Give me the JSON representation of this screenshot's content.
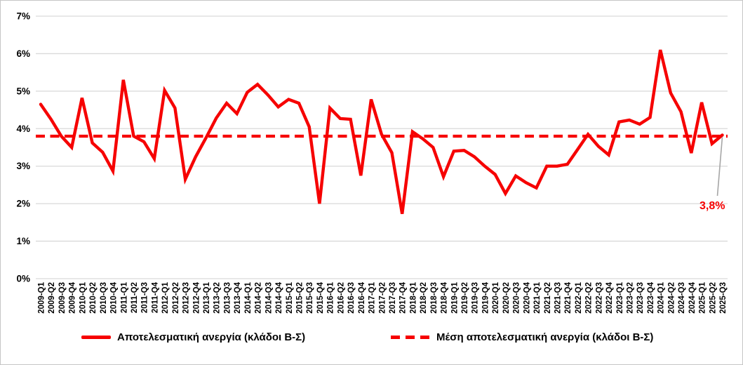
{
  "chart_data": {
    "type": "line",
    "title": "",
    "xlabel": "",
    "ylabel": "",
    "categories": [
      "2009-Q1",
      "2009-Q2",
      "2009-Q3",
      "2009-Q4",
      "2010-Q1",
      "2010-Q2",
      "2010-Q3",
      "2010-Q4",
      "2011-Q1",
      "2011-Q2",
      "2011-Q3",
      "2011-Q4",
      "2012-Q1",
      "2012-Q2",
      "2012-Q3",
      "2012-Q4",
      "2013-Q1",
      "2013-Q2",
      "2013-Q3",
      "2013-Q4",
      "2014-Q1",
      "2014-Q2",
      "2014-Q3",
      "2014-Q4",
      "2015-Q1",
      "2015-Q2",
      "2015-Q3",
      "2015-Q4",
      "2016-Q1",
      "2016-Q2",
      "2016-Q3",
      "2016-Q4",
      "2017-Q1",
      "2017-Q2",
      "2017-Q3",
      "2017-Q4",
      "2018-Q1",
      "2018-Q2",
      "2018-Q3",
      "2018-Q4",
      "2019-Q1",
      "2019-Q2",
      "2019-Q3",
      "2019-Q4",
      "2020-Q1",
      "2020-Q2",
      "2020-Q3",
      "2020-Q4",
      "2021-Q1",
      "2021-Q2",
      "2021-Q3",
      "2021-Q4",
      "2022-Q1",
      "2022-Q2",
      "2022-Q3",
      "2022-Q4",
      "2023-Q1",
      "2023-Q2",
      "2023-Q3",
      "2023-Q4",
      "2024-Q1",
      "2024-Q2",
      "2024-Q3",
      "2024-Q4",
      "2025-Q1",
      "2025-Q2",
      "2025-Q3"
    ],
    "series": [
      {
        "name": "Αποτελεσματική ανεργία (κλάδοι Β-Σ)",
        "style": "solid",
        "values": [
          4.65,
          4.25,
          3.8,
          3.5,
          4.82,
          3.62,
          3.37,
          2.87,
          5.3,
          3.8,
          3.65,
          3.2,
          5.02,
          4.55,
          2.65,
          3.25,
          3.75,
          4.28,
          4.68,
          4.4,
          4.97,
          5.18,
          4.9,
          4.58,
          4.78,
          4.68,
          4.05,
          2.0,
          4.55,
          4.27,
          4.25,
          2.75,
          4.78,
          3.85,
          3.36,
          1.73,
          3.92,
          3.73,
          3.5,
          2.72,
          3.4,
          3.42,
          3.25,
          3.0,
          2.78,
          2.27,
          2.74,
          2.56,
          2.42,
          3.0,
          3.0,
          3.05,
          3.45,
          3.85,
          3.53,
          3.3,
          4.18,
          4.23,
          4.12,
          4.3,
          6.1,
          4.95,
          4.45,
          3.35,
          4.7,
          3.6,
          3.83
        ]
      },
      {
        "name": "Μέση αποτελεσματική ανεργία (κλάδοι Β-Σ)",
        "style": "dashed",
        "mean_value": 3.8
      }
    ],
    "annotation": {
      "label": "3,8%",
      "value": 3.83
    },
    "y_axis": {
      "min": 0,
      "max": 7,
      "tick_step": 1,
      "ticks": [
        "0%",
        "1%",
        "2%",
        "3%",
        "4%",
        "5%",
        "6%",
        "7%"
      ]
    },
    "grid": "horizontal",
    "legend_position": "bottom",
    "colors": {
      "series": "#f60000",
      "gridline": "#d9d9d9",
      "axis_text": "#000000",
      "annotation_text": "#f60000",
      "leader_line": "#a6a6a6",
      "background": "#ffffff"
    }
  }
}
